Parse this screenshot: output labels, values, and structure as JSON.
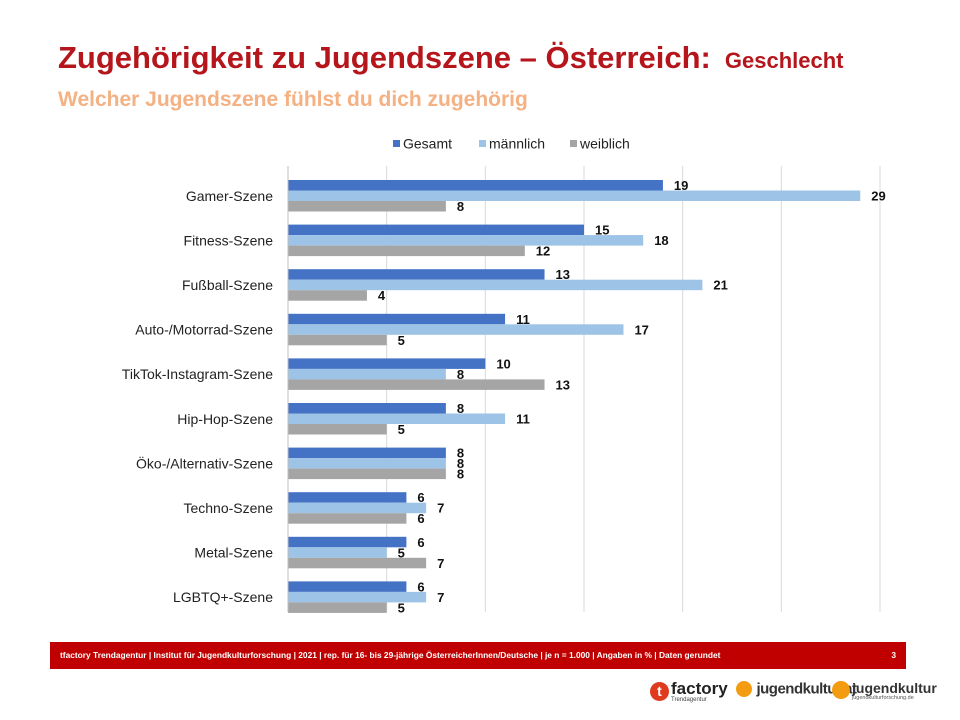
{
  "header": {
    "title": "Zugehörigkeit zu Jugendszene – Österreich:",
    "title_suffix": "Geschlecht",
    "subtitle": "Welcher Jugendszene fühlst du dich zugehörig"
  },
  "chart_data": {
    "type": "bar",
    "orientation": "horizontal",
    "title": "Welcher Jugendszene fühlst du dich zugehörig",
    "xlabel": "",
    "ylabel": "",
    "xlim": [
      0,
      30
    ],
    "grid": true,
    "legend_position": "top",
    "categories": [
      "Gamer-Szene",
      "Fitness-Szene",
      "Fußball-Szene",
      "Auto-/Motorrad-Szene",
      "TikTok-Instagram-Szene",
      "Hip-Hop-Szene",
      "Öko-/Alternativ-Szene",
      "Techno-Szene",
      "Metal-Szene",
      "LGBTQ+-Szene"
    ],
    "series": [
      {
        "name": "Gesamt",
        "color": "#4472c4",
        "values": [
          19,
          15,
          13,
          11,
          10,
          8,
          8,
          6,
          6,
          6
        ]
      },
      {
        "name": "männlich",
        "color": "#9dc3e6",
        "values": [
          29,
          18,
          21,
          17,
          8,
          11,
          8,
          7,
          5,
          7
        ]
      },
      {
        "name": "weiblich",
        "color": "#a5a5a5",
        "values": [
          8,
          12,
          4,
          5,
          13,
          5,
          8,
          6,
          7,
          5
        ]
      }
    ]
  },
  "footer": {
    "text": "tfactory Trendagentur | Institut für Jugendkulturforschung | 2021 | rep. für 16- bis 29-jährige ÖsterreicherInnen/Deutsche | je n = 1.000 | Angaben in % | Daten gerundet",
    "page": "3"
  },
  "logos": {
    "tfactory_letter": "t",
    "tfactory": "factory",
    "tfactory_tag": "Trendagentur",
    "jugendkultur_at": "jugendkultur.at",
    "jugendkultur": "jugendkultur",
    "jugendkultur_tag": "jugendkulturforschung.de"
  }
}
